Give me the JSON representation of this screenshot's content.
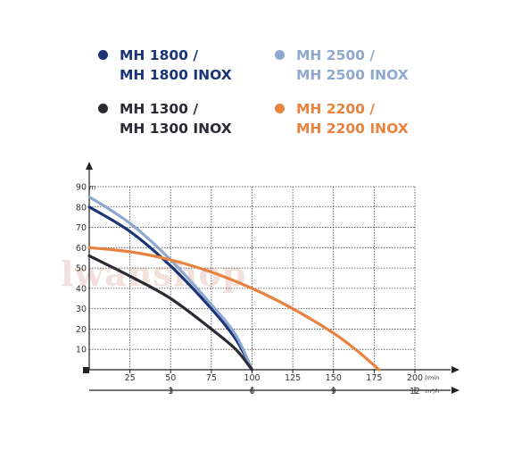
{
  "legend": [
    {
      "line1": "MH 1800 /",
      "line2": "MH 1800 INOX",
      "color": "#1a3475"
    },
    {
      "line1": "MH 2500 /",
      "line2": "MH 2500 INOX",
      "color": "#8fa8cf"
    },
    {
      "line1": "MH 1300 /",
      "line2": "MH 1300 INOX",
      "color": "#2b2b33"
    },
    {
      "line1": "MH 2200 /",
      "line2": "MH 2200 INOX",
      "color": "#e8823f"
    }
  ],
  "watermark": "lwanshop",
  "chart_data": {
    "type": "line",
    "title": "",
    "ylabel": "m",
    "xlabel": "l/min",
    "xlabel_secondary": "m³/h",
    "ylim": [
      0,
      90
    ],
    "xlim": [
      0,
      200
    ],
    "y_ticks": [
      "10",
      "20",
      "30",
      "40",
      "50",
      "60",
      "70",
      "80",
      "90"
    ],
    "x_ticks": [
      "25",
      "50",
      "75",
      "100",
      "125",
      "150",
      "175",
      "200"
    ],
    "x_ticks_secondary": [
      "3",
      "6",
      "9",
      "12"
    ],
    "grid": true,
    "series": [
      {
        "name": "MH 1800 / MH 1800 INOX",
        "color": "#1a3475",
        "x": [
          0,
          25,
          50,
          75,
          90,
          100
        ],
        "y": [
          80,
          68,
          51,
          30,
          15,
          0
        ]
      },
      {
        "name": "MH 2500 / MH 2500 INOX",
        "color": "#8fa8cf",
        "x": [
          0,
          25,
          50,
          75,
          90,
          100
        ],
        "y": [
          85,
          72,
          54,
          32,
          17,
          0
        ]
      },
      {
        "name": "MH 1300 / MH 1300 INOX",
        "color": "#2b2b33",
        "x": [
          0,
          25,
          50,
          75,
          90,
          100
        ],
        "y": [
          56,
          46,
          35,
          20,
          10,
          0
        ]
      },
      {
        "name": "MH 2200 / MH 2200 INOX",
        "color": "#e8823f",
        "x": [
          0,
          25,
          50,
          75,
          100,
          125,
          150,
          165,
          178
        ],
        "y": [
          60,
          58,
          54,
          48,
          40,
          30,
          18,
          9,
          0
        ]
      }
    ]
  }
}
